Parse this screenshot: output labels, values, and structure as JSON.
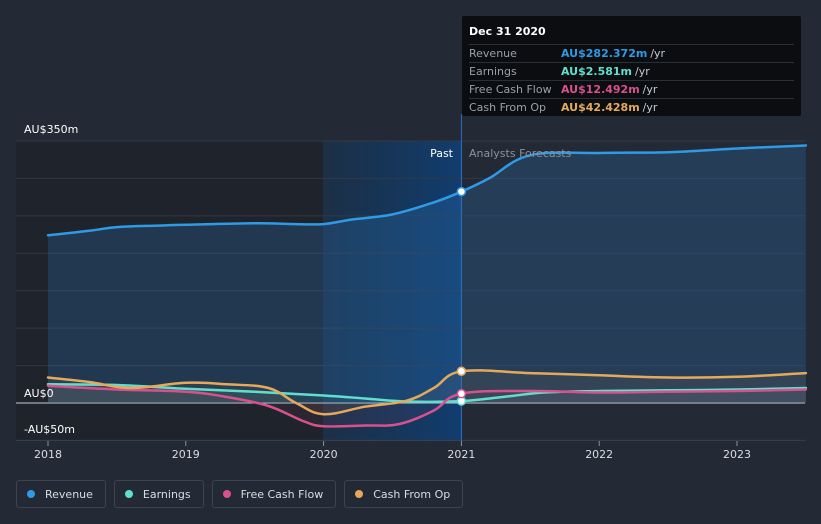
{
  "chart_data": {
    "type": "line",
    "y_axis": {
      "top_label": "AU$350m",
      "zero_label": "AU$0",
      "bottom_label": "-AU$50m",
      "ylim": [
        -50,
        350
      ]
    },
    "x_ticks": [
      "2018",
      "2019",
      "2020",
      "2021",
      "2022",
      "2023"
    ],
    "xlim": [
      2017.9,
      2023.5
    ],
    "past_label": "Past",
    "forecast_label": "Analysts Forecasts",
    "divider_x": 2021.0,
    "series": [
      {
        "name": "Revenue",
        "color": "#2f9ae6",
        "points": [
          [
            2018.0,
            224
          ],
          [
            2018.3,
            230
          ],
          [
            2018.5,
            235
          ],
          [
            2018.8,
            237
          ],
          [
            2019.0,
            238
          ],
          [
            2019.5,
            240
          ],
          [
            2019.8,
            239
          ],
          [
            2020.0,
            239
          ],
          [
            2020.2,
            245
          ],
          [
            2020.5,
            252
          ],
          [
            2020.8,
            268
          ],
          [
            2021.0,
            282.4
          ],
          [
            2021.2,
            300
          ],
          [
            2021.5,
            331
          ],
          [
            2022.0,
            334
          ],
          [
            2022.5,
            335
          ],
          [
            2023.0,
            340
          ],
          [
            2023.5,
            344
          ]
        ]
      },
      {
        "name": "Earnings",
        "color": "#5fe0cf",
        "points": [
          [
            2018.0,
            25
          ],
          [
            2018.5,
            24
          ],
          [
            2019.0,
            19
          ],
          [
            2019.5,
            15
          ],
          [
            2020.0,
            10
          ],
          [
            2020.3,
            6
          ],
          [
            2020.6,
            2
          ],
          [
            2021.0,
            2.6
          ],
          [
            2021.3,
            8
          ],
          [
            2021.6,
            14
          ],
          [
            2022.0,
            16
          ],
          [
            2022.5,
            17
          ],
          [
            2023.0,
            18
          ],
          [
            2023.5,
            20
          ]
        ]
      },
      {
        "name": "Free Cash Flow",
        "color": "#d9518c",
        "points": [
          [
            2018.0,
            23
          ],
          [
            2018.5,
            18
          ],
          [
            2019.0,
            15
          ],
          [
            2019.3,
            8
          ],
          [
            2019.6,
            -4
          ],
          [
            2019.85,
            -24
          ],
          [
            2020.0,
            -31
          ],
          [
            2020.3,
            -30
          ],
          [
            2020.55,
            -28
          ],
          [
            2020.8,
            -10
          ],
          [
            2021.0,
            12.5
          ],
          [
            2021.5,
            16
          ],
          [
            2022.0,
            14
          ],
          [
            2022.5,
            15
          ],
          [
            2023.0,
            16
          ],
          [
            2023.5,
            18
          ]
        ]
      },
      {
        "name": "Cash From Op",
        "color": "#e6a95c",
        "points": [
          [
            2018.0,
            34
          ],
          [
            2018.3,
            28
          ],
          [
            2018.6,
            20
          ],
          [
            2019.0,
            27
          ],
          [
            2019.3,
            25
          ],
          [
            2019.6,
            20
          ],
          [
            2019.8,
            0
          ],
          [
            2020.0,
            -15
          ],
          [
            2020.3,
            -5
          ],
          [
            2020.6,
            3
          ],
          [
            2020.8,
            20
          ],
          [
            2021.0,
            42.4
          ],
          [
            2021.5,
            40
          ],
          [
            2022.0,
            37
          ],
          [
            2022.5,
            34
          ],
          [
            2023.0,
            35
          ],
          [
            2023.5,
            40
          ]
        ]
      }
    ]
  },
  "tooltip": {
    "date": "Dec 31 2020",
    "unit": "/yr",
    "rows": [
      {
        "label": "Revenue",
        "value": "AU$282.372m",
        "color": "#2f9ae6"
      },
      {
        "label": "Earnings",
        "value": "AU$2.581m",
        "color": "#5fe0cf"
      },
      {
        "label": "Free Cash Flow",
        "value": "AU$12.492m",
        "color": "#d9518c"
      },
      {
        "label": "Cash From Op",
        "value": "AU$42.428m",
        "color": "#e6a95c"
      }
    ]
  },
  "legend": [
    {
      "label": "Revenue",
      "color": "#2f9ae6"
    },
    {
      "label": "Earnings",
      "color": "#5fe0cf"
    },
    {
      "label": "Free Cash Flow",
      "color": "#d9518c"
    },
    {
      "label": "Cash From Op",
      "color": "#e6a95c"
    }
  ]
}
